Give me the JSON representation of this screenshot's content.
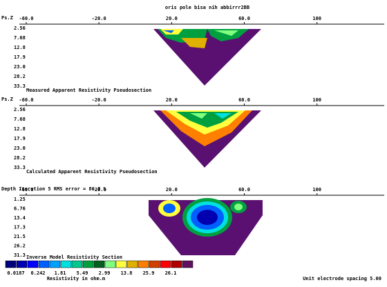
{
  "title": "oris pole bisa nih abbirrr2BB",
  "xaxis": {
    "xlim": [
      -60,
      137
    ],
    "xticks": [
      {
        "value": -60,
        "label": "-60.0"
      },
      {
        "value": -20,
        "label": "-20.0"
      },
      {
        "value": 20,
        "label": "20.0"
      },
      {
        "value": 60,
        "label": "60.0"
      },
      100
    ]
  },
  "panels": [
    {
      "axis_label": "Ps.Z",
      "depths": [
        "2.56",
        "7.68",
        "12.8",
        "17.9",
        "23.0",
        "28.2",
        "33.3"
      ],
      "caption": "Measured Apparent Resistivity Pseudosection"
    },
    {
      "axis_label": "Ps.Z",
      "depths": [
        "2.56",
        "7.68",
        "12.8",
        "17.9",
        "23.0",
        "28.2",
        "33.3"
      ],
      "caption": "Calculated Apparent Resistivity Pseudosection"
    },
    {
      "axis_label": "Depth  Iteration 5 RMS error = 86.0 %",
      "depths": [
        "1.25",
        "6.76",
        "13.4",
        "17.3",
        "21.5",
        "26.2",
        "31.3"
      ],
      "caption": "Inverse Model Resistivity Section"
    }
  ],
  "legend": {
    "colors": [
      "#00007a",
      "#0000b0",
      "#0000ff",
      "#0060ff",
      "#00a0ff",
      "#00e0e0",
      "#00c890",
      "#00a040",
      "#006020",
      "#80ff80",
      "#ffff40",
      "#e0b000",
      "#ff8000",
      "#d04000",
      "#ff0000",
      "#b00000",
      "#601060"
    ],
    "labels": [
      "0.0187",
      "0.242",
      "1.81",
      "5.49",
      "2.99",
      "13.8",
      "25.9",
      "26.1"
    ],
    "unit": "Resistivity in ohm.m"
  },
  "footer": "Unit electrode spacing 5.00"
}
